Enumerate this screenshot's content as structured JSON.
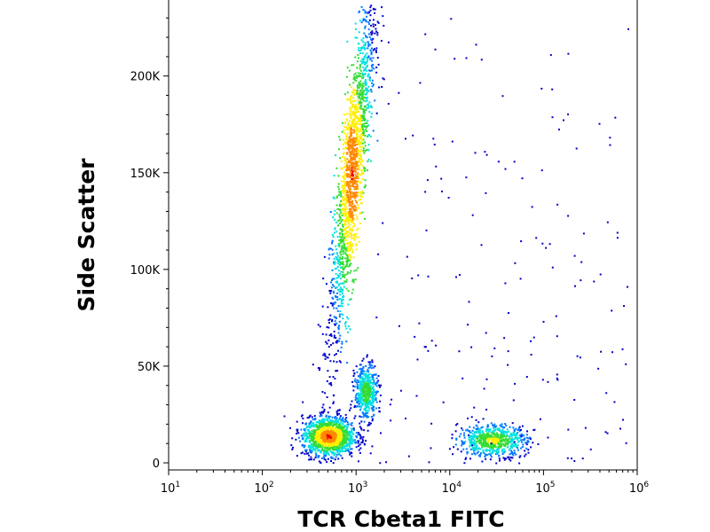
{
  "chart_data": {
    "type": "scatter",
    "subtype": "flow-cytometry density dot plot",
    "title": "",
    "xlabel": "TCR Cbeta1 FITC",
    "ylabel": "Side Scatter",
    "x_scale": "log",
    "xlim": [
      10,
      1000000
    ],
    "ylim": [
      0,
      237000
    ],
    "x_ticks": [
      {
        "value": 10,
        "base": "10",
        "exp": "1"
      },
      {
        "value": 100,
        "base": "10",
        "exp": "2"
      },
      {
        "value": 1000,
        "base": "10",
        "exp": "3"
      },
      {
        "value": 10000,
        "base": "10",
        "exp": "4"
      },
      {
        "value": 100000,
        "base": "10",
        "exp": "5"
      },
      {
        "value": 1000000,
        "base": "10",
        "exp": "6"
      }
    ],
    "y_ticks": [
      {
        "value": 0,
        "label": "0"
      },
      {
        "value": 50000,
        "label": "50K"
      },
      {
        "value": 100000,
        "label": "100K"
      },
      {
        "value": 150000,
        "label": "150K"
      },
      {
        "value": 200000,
        "label": "200K"
      }
    ],
    "color_scale": [
      "#0000cc",
      "#0077ff",
      "#00e0e0",
      "#33dd33",
      "#ffee00",
      "#ff8800",
      "#ee0000"
    ],
    "populations": [
      {
        "log_x_mean": 2.95,
        "y_mean": 150000,
        "log_x_sd": 0.12,
        "y_sd": 45000,
        "corr": 0.82,
        "peak_log_x": 2.95,
        "peak_y": 145000,
        "relative_density": 0.95
      },
      {
        "log_x_mean": 2.7,
        "y_mean": 14000,
        "log_x_sd": 0.14,
        "y_sd": 5000,
        "corr": 0.0,
        "peak_log_x": 2.72,
        "peak_y": 13000,
        "relative_density": 1.0
      },
      {
        "log_x_mean": 3.1,
        "y_mean": 37000,
        "log_x_sd": 0.06,
        "y_sd": 7000,
        "corr": 0.0,
        "peak_log_x": 3.1,
        "peak_y": 37000,
        "relative_density": 0.6
      },
      {
        "log_x_mean": 4.45,
        "y_mean": 12000,
        "log_x_sd": 0.18,
        "y_sd": 4000,
        "corr": 0.0,
        "peak_log_x": 4.45,
        "peak_y": 11000,
        "relative_density": 0.7
      }
    ]
  }
}
